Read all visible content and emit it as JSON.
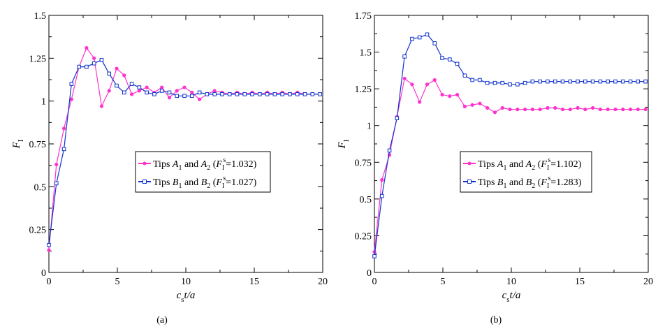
{
  "chart_data": [
    {
      "type": "line",
      "panel_label": "(a)",
      "xlabel_main": "c",
      "xlabel_sub": "s",
      "xlabel_tail": "t/a",
      "ylabel_main": "F",
      "ylabel_sub": "I",
      "xlim": [
        0,
        20
      ],
      "ylim": [
        0,
        1.5
      ],
      "xticks": [
        0,
        5,
        10,
        15,
        20
      ],
      "xtick_labels": [
        "0",
        "5",
        "10",
        "15",
        "20"
      ],
      "yticks": [
        0,
        0.25,
        0.5,
        0.75,
        1,
        1.25,
        1.5
      ],
      "ytick_labels": [
        "0",
        "0.25",
        "0.5",
        "0.75",
        "1",
        "1.25",
        "1.5"
      ],
      "legend_position": "center-right",
      "series": [
        {
          "name": "Tips A1 and A2 (FIs=1.032)",
          "legend": {
            "pre": "Tips ",
            "v1": "A",
            "s1": "1",
            "mid": " and ",
            "v2": "A",
            "s2": "2",
            "open": " (",
            "fv": "F",
            "fsub": "I",
            "fsup": "s",
            "val": "=1.032)"
          },
          "color": "#ff33cc",
          "marker": "circle",
          "x": [
            0,
            0.55,
            1.1,
            1.65,
            2.2,
            2.75,
            3.3,
            3.85,
            4.4,
            4.95,
            5.5,
            6.05,
            6.6,
            7.15,
            7.7,
            8.25,
            8.8,
            9.35,
            9.9,
            10.45,
            11,
            11.55,
            12.1,
            12.65,
            13.2,
            13.75,
            14.3,
            14.85,
            15.4,
            15.95,
            16.5,
            17.05,
            17.6,
            18.15,
            18.7,
            19.25,
            19.8
          ],
          "y": [
            0.13,
            0.63,
            0.84,
            1.01,
            1.2,
            1.31,
            1.25,
            0.97,
            1.06,
            1.19,
            1.15,
            1.04,
            1.06,
            1.08,
            1.05,
            1.08,
            1.02,
            1.06,
            1.08,
            1.05,
            1.01,
            1.04,
            1.06,
            1.05,
            1.04,
            1.05,
            1.04,
            1.05,
            1.04,
            1.05,
            1.04,
            1.05,
            1.04,
            1.05,
            1.04,
            1.04,
            1.04
          ]
        },
        {
          "name": "Tips B1 and B2 (FIs=1.027)",
          "legend": {
            "pre": "Tips ",
            "v1": "B",
            "s1": "1",
            "mid": " and ",
            "v2": "B",
            "s2": "2",
            "open": " (",
            "fv": "F",
            "fsub": "I",
            "fsup": "s",
            "val": "=1.027)"
          },
          "color": "#1133cc",
          "marker": "square",
          "x": [
            0,
            0.55,
            1.1,
            1.65,
            2.2,
            2.75,
            3.3,
            3.85,
            4.4,
            4.95,
            5.5,
            6.05,
            6.6,
            7.15,
            7.7,
            8.25,
            8.8,
            9.35,
            9.9,
            10.45,
            11,
            11.55,
            12.1,
            12.65,
            13.2,
            13.75,
            14.3,
            14.85,
            15.4,
            15.95,
            16.5,
            17.05,
            17.6,
            18.15,
            18.7,
            19.25,
            19.8
          ],
          "y": [
            0.16,
            0.52,
            0.72,
            1.1,
            1.2,
            1.2,
            1.22,
            1.24,
            1.16,
            1.09,
            1.05,
            1.1,
            1.08,
            1.05,
            1.04,
            1.06,
            1.05,
            1.03,
            1.03,
            1.03,
            1.05,
            1.04,
            1.04,
            1.04,
            1.04,
            1.04,
            1.04,
            1.04,
            1.04,
            1.04,
            1.04,
            1.04,
            1.04,
            1.04,
            1.04,
            1.04,
            1.04
          ]
        }
      ]
    },
    {
      "type": "line",
      "panel_label": "(b)",
      "xlabel_main": "c",
      "xlabel_sub": "s",
      "xlabel_tail": "t/a",
      "ylabel_main": "F",
      "ylabel_sub": "I",
      "xlim": [
        0,
        20
      ],
      "ylim": [
        0,
        1.75
      ],
      "xticks": [
        0,
        5,
        10,
        15,
        20
      ],
      "xtick_labels": [
        "0",
        "5",
        "10",
        "15",
        "20"
      ],
      "yticks": [
        0,
        0.25,
        0.5,
        0.75,
        1,
        1.25,
        1.5,
        1.75
      ],
      "ytick_labels": [
        "0",
        "0.25",
        "0.5",
        "0.75",
        "1",
        "1.25",
        "1.5",
        "1.75"
      ],
      "legend_position": "center-right",
      "series": [
        {
          "name": "Tips A1 and A2 (FIs=1.102)",
          "legend": {
            "pre": "Tips ",
            "v1": "A",
            "s1": "1",
            "mid": " and ",
            "v2": "A",
            "s2": "2",
            "open": " (",
            "fv": "F",
            "fsub": "I",
            "fsup": "s",
            "val": "=1.102)"
          },
          "color": "#ff33cc",
          "marker": "circle",
          "x": [
            0,
            0.55,
            1.1,
            1.65,
            2.2,
            2.75,
            3.3,
            3.85,
            4.4,
            4.95,
            5.5,
            6.05,
            6.6,
            7.15,
            7.7,
            8.25,
            8.8,
            9.35,
            9.9,
            10.45,
            11,
            11.55,
            12.1,
            12.65,
            13.2,
            13.75,
            14.3,
            14.85,
            15.4,
            15.95,
            16.5,
            17.05,
            17.6,
            18.15,
            18.7,
            19.25,
            19.8
          ],
          "y": [
            0.14,
            0.63,
            0.8,
            1.06,
            1.32,
            1.28,
            1.16,
            1.28,
            1.31,
            1.21,
            1.2,
            1.21,
            1.13,
            1.14,
            1.15,
            1.12,
            1.09,
            1.12,
            1.11,
            1.11,
            1.11,
            1.11,
            1.11,
            1.12,
            1.12,
            1.11,
            1.11,
            1.12,
            1.11,
            1.12,
            1.11,
            1.11,
            1.11,
            1.11,
            1.11,
            1.11,
            1.11
          ]
        },
        {
          "name": "Tips B1 and B2 (FIs=1.283)",
          "legend": {
            "pre": "Tips ",
            "v1": "B",
            "s1": "1",
            "mid": " and ",
            "v2": "B",
            "s2": "2",
            "open": " (",
            "fv": "F",
            "fsub": "I",
            "fsup": "s",
            "val": "=1.283)"
          },
          "color": "#1133cc",
          "marker": "square",
          "x": [
            0,
            0.55,
            1.1,
            1.65,
            2.2,
            2.75,
            3.3,
            3.85,
            4.4,
            4.95,
            5.5,
            6.05,
            6.6,
            7.15,
            7.7,
            8.25,
            8.8,
            9.35,
            9.9,
            10.45,
            11,
            11.55,
            12.1,
            12.65,
            13.2,
            13.75,
            14.3,
            14.85,
            15.4,
            15.95,
            16.5,
            17.05,
            17.6,
            18.15,
            18.7,
            19.25,
            19.8
          ],
          "y": [
            0.11,
            0.52,
            0.83,
            1.05,
            1.47,
            1.59,
            1.6,
            1.62,
            1.56,
            1.46,
            1.45,
            1.42,
            1.34,
            1.31,
            1.31,
            1.29,
            1.29,
            1.29,
            1.28,
            1.28,
            1.29,
            1.3,
            1.3,
            1.3,
            1.3,
            1.3,
            1.3,
            1.3,
            1.3,
            1.3,
            1.3,
            1.3,
            1.3,
            1.3,
            1.3,
            1.3,
            1.3
          ]
        }
      ]
    }
  ]
}
